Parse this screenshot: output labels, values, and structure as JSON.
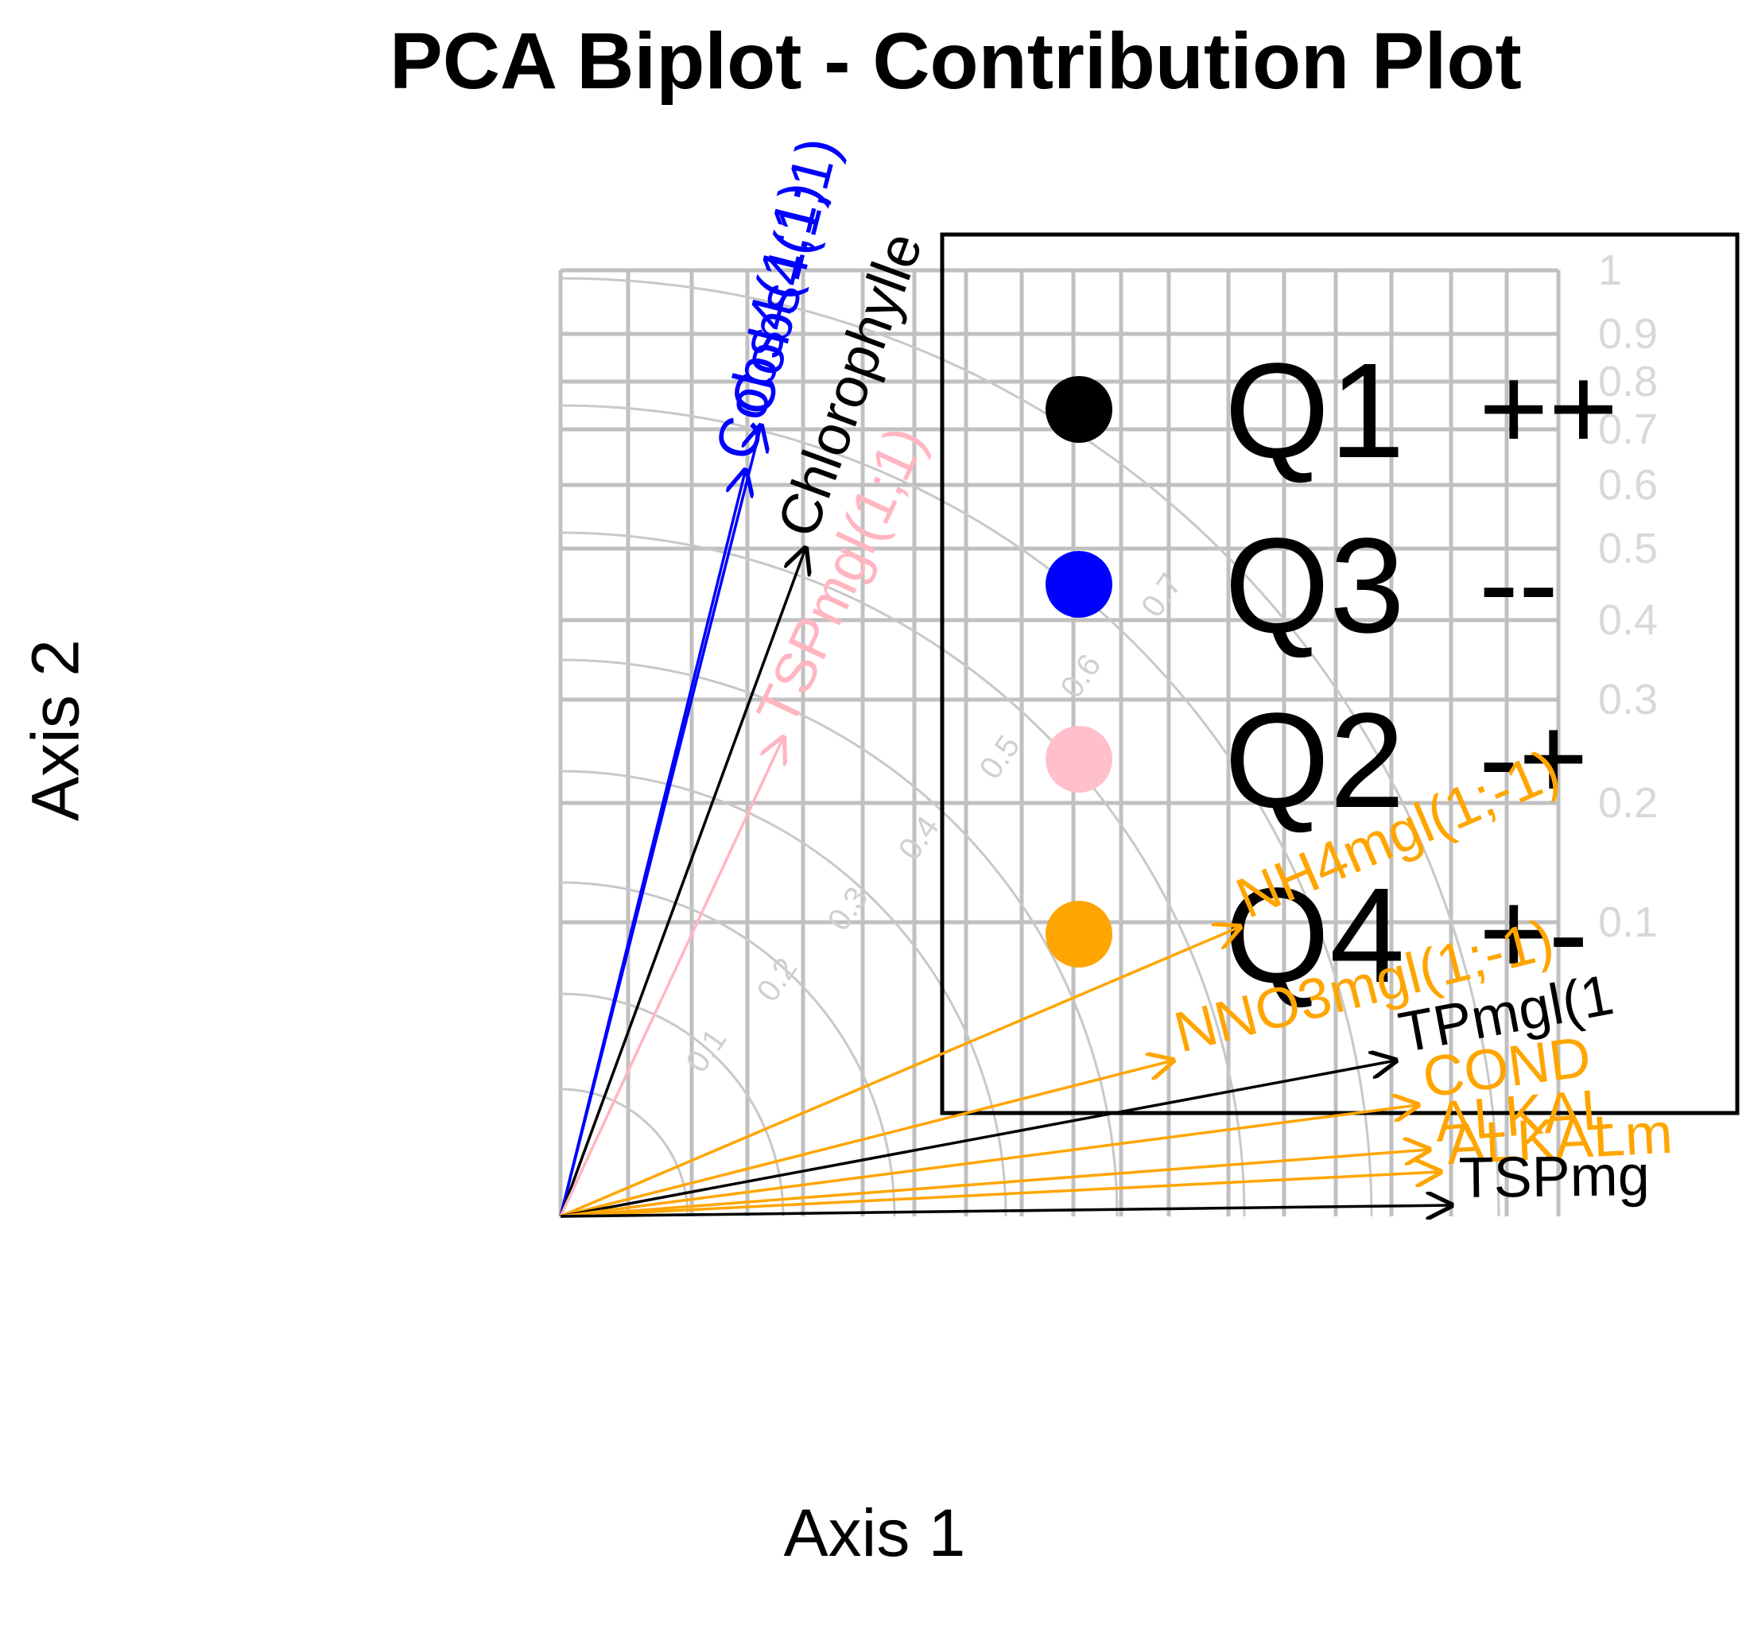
{
  "chart_data": {
    "type": "scatter",
    "title": "PCA Biplot - Contribution Plot",
    "xlabel": "Axis 1",
    "ylabel": "Axis 2",
    "xlim": [
      0,
      1
    ],
    "ylim": [
      0,
      1
    ],
    "grid": true,
    "radial_grid_labels": [
      "0.1",
      "0.2",
      "0.3",
      "0.4",
      "0.5",
      "0.6",
      "0.7"
    ],
    "y_grid_labels": [
      "0.1",
      "0.2",
      "0.3",
      "0.4",
      "0.5",
      "0.6",
      "0.7",
      "0.8",
      "0.9",
      "1"
    ],
    "variables": [
      {
        "name": "Cobs4(1;1)",
        "x": 0.166,
        "y": 0.67,
        "color": "#0000ff"
      },
      {
        "name": "Cobs4(1;1)",
        "x": 0.18,
        "y": 0.71,
        "color": "#0000ff"
      },
      {
        "name": "Chlorophylle",
        "x": 0.22,
        "y": 0.6,
        "color": "#000000"
      },
      {
        "name": "TSPmgl(1;1)",
        "x": 0.2,
        "y": 0.43,
        "color": "#ffb6c1"
      },
      {
        "name": "NH4mgl(1;-1)",
        "x": 0.61,
        "y": 0.26,
        "color": "#ffa500"
      },
      {
        "name": "NNO3mgl(1;-1)",
        "x": 0.55,
        "y": 0.14,
        "color": "#ffa500"
      },
      {
        "name": "TPmgl(1",
        "x": 0.75,
        "y": 0.14,
        "color": "#000000"
      },
      {
        "name": "COND",
        "x": 0.77,
        "y": 0.1,
        "color": "#ffa500"
      },
      {
        "name": "ALKAL",
        "x": 0.78,
        "y": 0.06,
        "color": "#ffa500"
      },
      {
        "name": "ALKALm",
        "x": 0.79,
        "y": 0.04,
        "color": "#ffa500"
      },
      {
        "name": "TSPmg",
        "x": 0.8,
        "y": 0.01,
        "color": "#000000"
      }
    ],
    "legend": {
      "placement": "top-right",
      "entries": [
        {
          "label": "Q1",
          "sign": "++",
          "color": "#000000"
        },
        {
          "label": "Q3",
          "sign": "--",
          "color": "#0000ff"
        },
        {
          "label": "Q2",
          "sign": "-+",
          "color": "#ffc0cb"
        },
        {
          "label": "Q4",
          "sign": "+-",
          "color": "#ffa500"
        }
      ]
    }
  }
}
